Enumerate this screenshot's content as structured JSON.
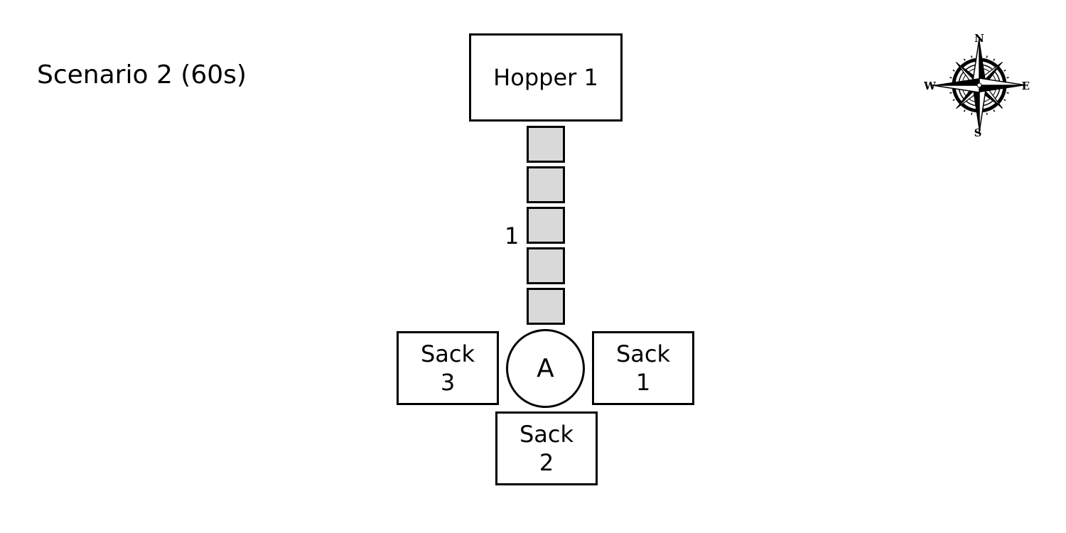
{
  "title": "Scenario 2 (60s)",
  "hopper": {
    "label": "Hopper 1"
  },
  "conveyor": {
    "label": "1",
    "cell_count": 5,
    "cell_color": "#d9d9d9"
  },
  "robot": {
    "label": "A"
  },
  "sacks": [
    {
      "line1": "Sack",
      "line2": "1"
    },
    {
      "line1": "Sack",
      "line2": "2"
    },
    {
      "line1": "Sack",
      "line2": "3"
    }
  ],
  "compass": {
    "north": "N",
    "east": "E",
    "south": "S",
    "west": "W",
    "icon": "compass-rose-icon"
  },
  "colors": {
    "stroke": "#000000",
    "background": "#ffffff",
    "conveyor_fill": "#d9d9d9"
  }
}
